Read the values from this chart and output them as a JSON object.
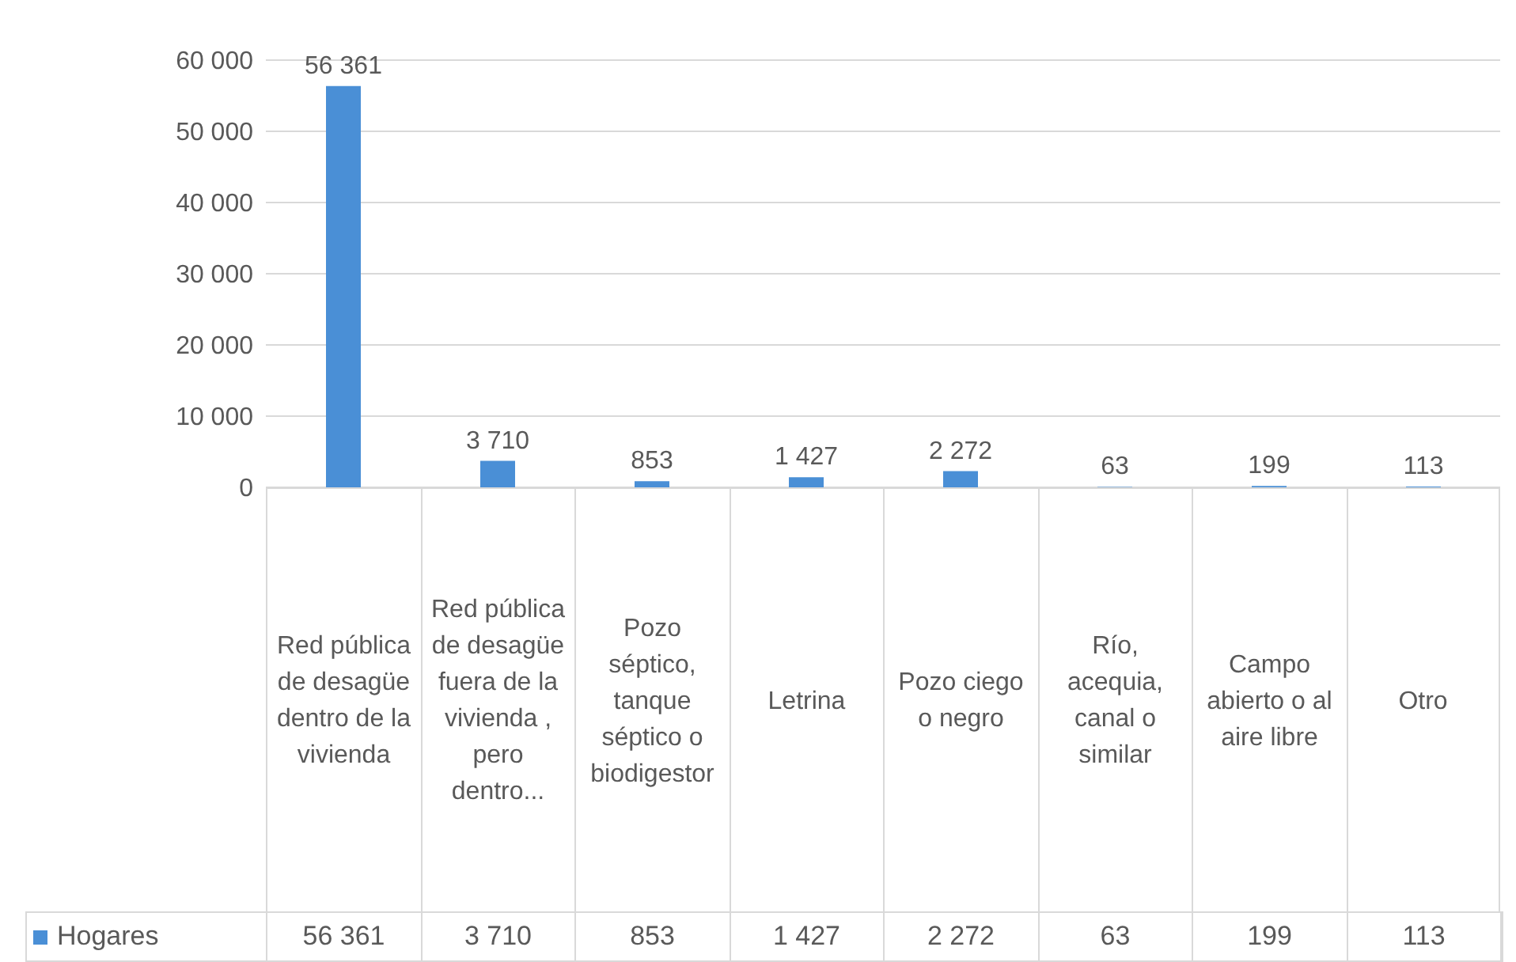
{
  "chart_data": {
    "type": "bar",
    "categories": [
      "Red pública de desagüe dentro de la vivienda",
      "Red pública de desagüe fuera de la vivienda , pero dentro...",
      "Pozo séptico, tanque séptico o biodigestor",
      "Letrina",
      "Pozo ciego o negro",
      "Río, acequia, canal o similar",
      "Campo abierto o al aire libre",
      "Otro"
    ],
    "series": [
      {
        "name": "Hogares",
        "color": "#4a8fd6",
        "values": [
          56361,
          3710,
          853,
          1427,
          2272,
          63,
          199,
          113
        ],
        "value_labels": [
          "56 361",
          "3 710",
          "853",
          "1 427",
          "2 272",
          "63",
          "199",
          "113"
        ]
      }
    ],
    "ylim": [
      0,
      60000
    ],
    "yticks": [
      {
        "value": 0,
        "label": "0"
      },
      {
        "value": 10000,
        "label": "10 000"
      },
      {
        "value": 20000,
        "label": "20 000"
      },
      {
        "value": 30000,
        "label": "30 000"
      },
      {
        "value": 40000,
        "label": "40 000"
      },
      {
        "value": 50000,
        "label": "50 000"
      },
      {
        "value": 60000,
        "label": "60 000"
      }
    ],
    "grid": "y",
    "legend": "bottom",
    "data_labels": true
  }
}
